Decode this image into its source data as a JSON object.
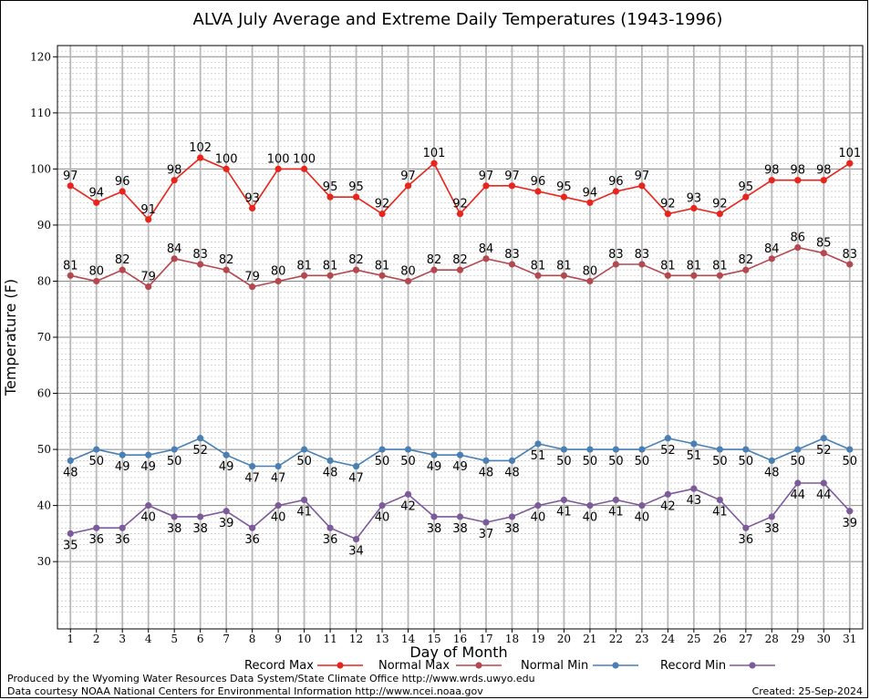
{
  "chart_data": {
    "type": "line",
    "title": "ALVA July Average and Extreme Daily Temperatures (1943-1996)",
    "xlabel": "Day of Month",
    "ylabel": "Temperature (F)",
    "ylim": [
      18,
      122
    ],
    "yticks": [
      30,
      40,
      50,
      60,
      70,
      80,
      90,
      100,
      110,
      120
    ],
    "x": [
      1,
      2,
      3,
      4,
      5,
      6,
      7,
      8,
      9,
      10,
      11,
      12,
      13,
      14,
      15,
      16,
      17,
      18,
      19,
      20,
      21,
      22,
      23,
      24,
      25,
      26,
      27,
      28,
      29,
      30,
      31
    ],
    "grid": true,
    "legend_position": "bottom",
    "series": [
      {
        "name": "Record Max",
        "color": "#e8241c",
        "label_position": "above",
        "values": [
          97,
          94,
          96,
          91,
          98,
          102,
          100,
          93,
          100,
          100,
          95,
          95,
          92,
          97,
          101,
          92,
          97,
          97,
          96,
          95,
          94,
          96,
          97,
          92,
          93,
          92,
          95,
          98,
          98,
          98,
          101
        ]
      },
      {
        "name": "Normal Max",
        "color": "#b4484e",
        "label_position": "above",
        "values": [
          81,
          80,
          82,
          79,
          84,
          83,
          82,
          79,
          80,
          81,
          81,
          82,
          81,
          80,
          82,
          82,
          84,
          83,
          81,
          81,
          80,
          83,
          83,
          81,
          81,
          81,
          82,
          84,
          86,
          85,
          83
        ]
      },
      {
        "name": "Normal Min",
        "color": "#4a7fb4",
        "label_position": "below",
        "values": [
          48,
          50,
          49,
          49,
          50,
          52,
          49,
          47,
          47,
          50,
          48,
          47,
          50,
          50,
          49,
          49,
          48,
          48,
          51,
          50,
          50,
          50,
          50,
          52,
          51,
          50,
          50,
          48,
          50,
          52,
          50
        ]
      },
      {
        "name": "Record Min",
        "color": "#7d5a9a",
        "label_position": "below",
        "values": [
          35,
          36,
          36,
          40,
          38,
          38,
          39,
          36,
          40,
          41,
          36,
          34,
          40,
          42,
          38,
          38,
          37,
          38,
          40,
          41,
          40,
          41,
          40,
          42,
          43,
          41,
          36,
          38,
          44,
          44,
          39
        ]
      }
    ]
  },
  "footer": {
    "produced_by": "Produced by the Wyoming Water Resources Data System/State Climate Office http://www.wrds.uwyo.edu",
    "courtesy": "Data courtesy NOAA National Centers for Environmental Information http://www.ncei.noaa.gov",
    "created": "Created:  25-Sep-2024"
  }
}
